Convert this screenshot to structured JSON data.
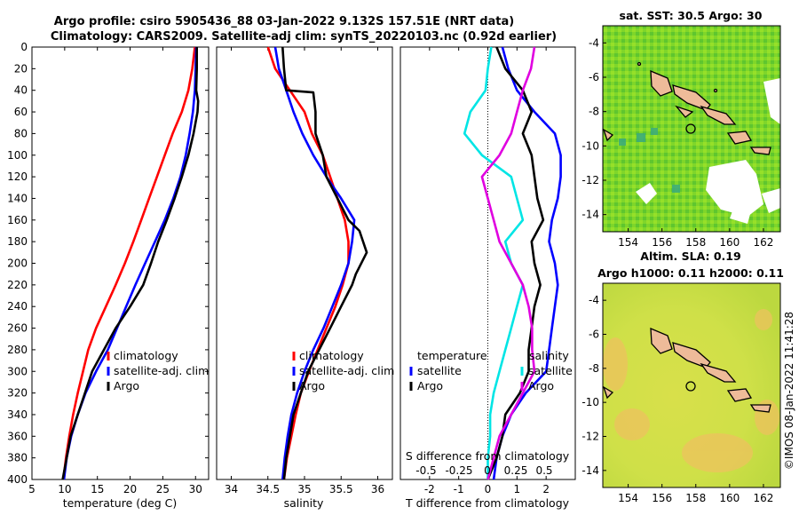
{
  "header": {
    "title_line1": "Argo profile: csiro 5905436_88 03-Jan-2022 9.132S 157.51E (NRT data)",
    "title_line2": "Climatology: CARS2009. Satellite-adj clim: synTS_20220103.nc (0.92d earlier)"
  },
  "watermark": "©IMOS 08-Jan-2022 11:41:28",
  "colors": {
    "climatology": "#ff0000",
    "satellite": "#0000ff",
    "argo": "#000000",
    "sal_sat": "#00e5e5",
    "sal_argo": "#e000e0"
  },
  "chart_data": [
    {
      "type": "line",
      "name": "temperature",
      "xlabel": "temperature (deg C)",
      "ylabel": "",
      "xlim": [
        5,
        32
      ],
      "ylim": [
        0,
        400
      ],
      "xticks": [
        "5",
        "10",
        "15",
        "20",
        "25",
        "30"
      ],
      "yticks": [
        "0",
        "20",
        "40",
        "60",
        "80",
        "100",
        "120",
        "140",
        "160",
        "180",
        "200",
        "220",
        "240",
        "260",
        "280",
        "300",
        "320",
        "340",
        "360",
        "380",
        "400"
      ],
      "legend": [
        "climatology",
        "satellite-adj. clim",
        "Argo"
      ],
      "series": [
        {
          "name": "climatology",
          "color": "#ff0000",
          "depth": [
            0,
            20,
            40,
            60,
            80,
            100,
            120,
            140,
            160,
            180,
            200,
            220,
            240,
            260,
            280,
            300,
            320,
            340,
            360,
            380,
            400
          ],
          "values": [
            29.9,
            29.5,
            28.9,
            27.9,
            26.5,
            25.3,
            24.1,
            22.9,
            21.7,
            20.5,
            19.2,
            17.8,
            16.3,
            14.8,
            13.6,
            12.8,
            12.0,
            11.3,
            10.7,
            10.2,
            9.8
          ]
        },
        {
          "name": "satellite-adj. clim",
          "color": "#0000ff",
          "depth": [
            0,
            20,
            40,
            60,
            80,
            100,
            120,
            140,
            160,
            180,
            200,
            220,
            240,
            260,
            280,
            300,
            320,
            340,
            360,
            380,
            400
          ],
          "values": [
            30.1,
            30.0,
            29.9,
            29.6,
            29.1,
            28.5,
            27.7,
            26.6,
            25.3,
            23.8,
            22.3,
            20.8,
            19.4,
            18.0,
            16.6,
            14.8,
            13.2,
            12.0,
            11.0,
            10.3,
            9.9
          ]
        },
        {
          "name": "Argo",
          "color": "#000000",
          "depth": [
            0,
            20,
            40,
            50,
            60,
            80,
            100,
            120,
            140,
            160,
            180,
            200,
            220,
            240,
            260,
            280,
            300,
            320,
            340,
            360,
            380,
            400
          ],
          "values": [
            30.2,
            30.2,
            30.1,
            30.4,
            30.3,
            29.7,
            28.9,
            27.9,
            26.8,
            25.6,
            24.3,
            23.2,
            22.0,
            20.0,
            17.8,
            16.0,
            14.2,
            13.1,
            12.0,
            10.9,
            10.3,
            9.7
          ]
        }
      ]
    },
    {
      "type": "line",
      "name": "salinity",
      "xlabel": "salinity",
      "xlim": [
        33.8,
        36.2
      ],
      "ylim": [
        0,
        400
      ],
      "xticks": [
        "34",
        "34.5",
        "35",
        "35.5",
        "36"
      ],
      "legend": [
        "climatology",
        "satellite-adj. clim",
        "Argo"
      ],
      "series": [
        {
          "name": "climatology",
          "color": "#ff0000",
          "depth": [
            0,
            20,
            40,
            60,
            80,
            100,
            120,
            140,
            160,
            180,
            200,
            220,
            240,
            260,
            280,
            300,
            320,
            340,
            360,
            380,
            400
          ],
          "values": [
            34.5,
            34.6,
            34.8,
            35.0,
            35.1,
            35.25,
            35.35,
            35.45,
            35.55,
            35.6,
            35.6,
            35.52,
            35.42,
            35.3,
            35.18,
            35.06,
            34.95,
            34.88,
            34.82,
            34.76,
            34.72
          ]
        },
        {
          "name": "satellite-adj. clim",
          "color": "#0000ff",
          "depth": [
            0,
            20,
            40,
            60,
            80,
            100,
            120,
            140,
            160,
            180,
            200,
            220,
            240,
            260,
            280,
            300,
            320,
            340,
            360,
            380,
            400
          ],
          "values": [
            34.6,
            34.65,
            34.75,
            34.85,
            34.97,
            35.12,
            35.3,
            35.5,
            35.68,
            35.65,
            35.6,
            35.5,
            35.38,
            35.26,
            35.12,
            35.0,
            34.9,
            34.82,
            34.77,
            34.73,
            34.7
          ]
        },
        {
          "name": "Argo",
          "color": "#000000",
          "depth": [
            0,
            20,
            40,
            42,
            60,
            80,
            100,
            120,
            140,
            160,
            170,
            190,
            210,
            220,
            240,
            260,
            280,
            300,
            320,
            340,
            360,
            380,
            400
          ],
          "values": [
            34.7,
            34.72,
            34.75,
            35.12,
            35.15,
            35.15,
            35.25,
            35.3,
            35.45,
            35.6,
            35.75,
            35.85,
            35.7,
            35.65,
            35.5,
            35.35,
            35.2,
            35.05,
            34.95,
            34.85,
            34.8,
            34.75,
            34.72
          ]
        }
      ]
    },
    {
      "type": "line",
      "name": "differences",
      "xlabel": "T difference from climatology",
      "xlabel_top": "S difference from climatology",
      "xlim": [
        -3,
        3
      ],
      "ylim": [
        0,
        400
      ],
      "xticks": [
        "-2",
        "-1",
        "0",
        "1",
        "2"
      ],
      "xticks_top": [
        "-0.5",
        "-0.25",
        "0",
        "0.25",
        "0.5"
      ],
      "legend_left_title": "temperature",
      "legend_left": [
        "satellite",
        "Argo"
      ],
      "legend_right_title": "salinity",
      "legend_right": [
        "satellite",
        "Argo"
      ],
      "series": [
        {
          "name": "T satellite",
          "color": "#0000ff",
          "depth": [
            0,
            20,
            40,
            60,
            80,
            100,
            120,
            140,
            160,
            180,
            200,
            220,
            240,
            260,
            280,
            300,
            320,
            340,
            360,
            380,
            400
          ],
          "values": [
            0.5,
            0.7,
            1.0,
            1.6,
            2.3,
            2.5,
            2.5,
            2.4,
            2.2,
            2.1,
            2.3,
            2.4,
            2.3,
            2.2,
            2.1,
            2.0,
            1.3,
            0.8,
            0.5,
            0.3,
            0.2
          ]
        },
        {
          "name": "T Argo",
          "color": "#000000",
          "depth": [
            0,
            20,
            40,
            60,
            80,
            100,
            120,
            140,
            160,
            180,
            200,
            220,
            240,
            260,
            280,
            300,
            320,
            340,
            360,
            380,
            400
          ],
          "values": [
            0.3,
            0.6,
            1.2,
            1.5,
            1.2,
            1.5,
            1.6,
            1.7,
            1.9,
            1.5,
            1.6,
            1.8,
            1.6,
            1.5,
            1.4,
            1.4,
            1.1,
            0.6,
            0.5,
            0.3,
            0.0
          ]
        },
        {
          "name": "S satellite",
          "color": "#00e5e5",
          "depth": [
            0,
            20,
            40,
            60,
            80,
            100,
            120,
            140,
            160,
            180,
            200,
            220,
            240,
            260,
            280,
            300,
            320,
            340,
            360,
            380,
            400
          ],
          "values": [
            0.03,
            0.0,
            -0.02,
            -0.15,
            -0.2,
            -0.05,
            0.2,
            0.25,
            0.3,
            0.15,
            0.2,
            0.3,
            0.25,
            0.2,
            0.15,
            0.1,
            0.05,
            0.02,
            0.02,
            0.0,
            0.0
          ]
        },
        {
          "name": "S Argo",
          "color": "#e000e0",
          "depth": [
            0,
            20,
            40,
            60,
            80,
            100,
            120,
            140,
            160,
            180,
            200,
            220,
            240,
            260,
            280,
            300,
            320,
            340,
            360,
            380,
            400
          ],
          "values": [
            0.4,
            0.37,
            0.3,
            0.25,
            0.2,
            0.1,
            -0.05,
            0.0,
            0.05,
            0.1,
            0.2,
            0.3,
            0.35,
            0.38,
            0.38,
            0.4,
            0.3,
            0.2,
            0.1,
            0.05,
            0.0
          ]
        }
      ]
    },
    {
      "type": "heatmap",
      "name": "sst_map",
      "title": "sat. SST: 30.5 Argo: 30",
      "xlim": [
        152.5,
        163
      ],
      "ylim": [
        -15,
        -3
      ],
      "xticks": [
        "154",
        "156",
        "158",
        "160",
        "162"
      ],
      "yticks": [
        "-4",
        "-6",
        "-8",
        "-10",
        "-12",
        "-14"
      ],
      "marker": {
        "lon": 157.51,
        "lat": -9.132
      }
    },
    {
      "type": "heatmap",
      "name": "sla_map",
      "title_line1": "Altim. SLA: 0.19",
      "title_line2": "Argo h1000: 0.11 h2000: 0.11",
      "xlim": [
        152.5,
        163
      ],
      "ylim": [
        -15,
        -3
      ],
      "xticks": [
        "154",
        "156",
        "158",
        "160",
        "162"
      ],
      "yticks": [
        "-4",
        "-6",
        "-8",
        "-10",
        "-12",
        "-14"
      ],
      "marker": {
        "lon": 157.51,
        "lat": -9.132
      }
    }
  ]
}
